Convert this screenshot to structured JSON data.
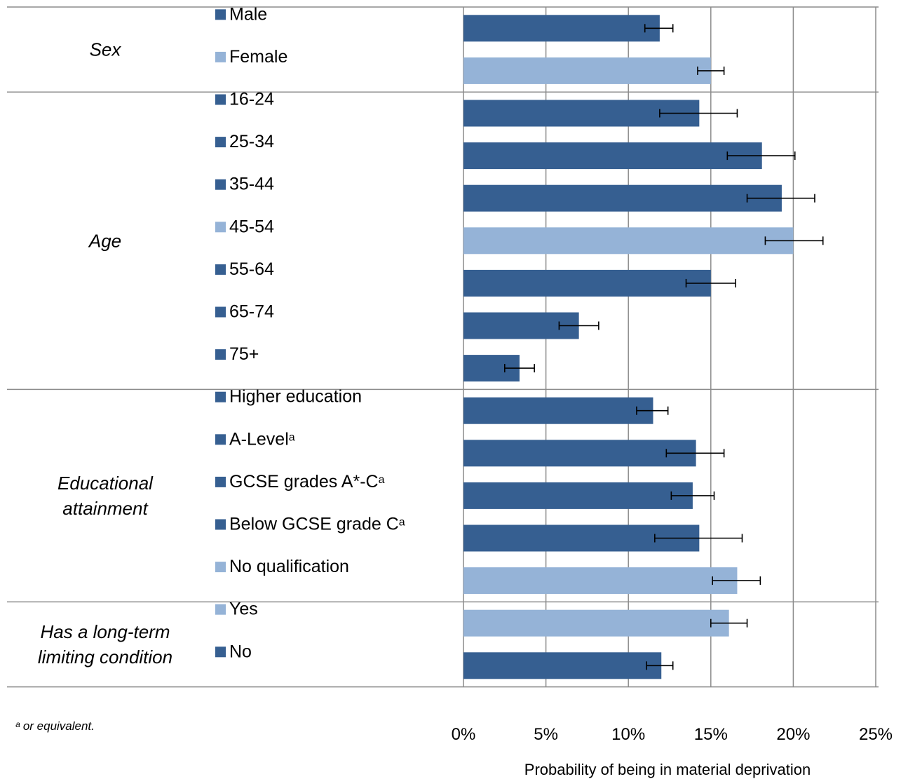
{
  "chart_data": {
    "type": "bar",
    "orientation": "horizontal",
    "xlabel": "Probability of being in material deprivation",
    "xlim": [
      0,
      0.25
    ],
    "x_ticks": [
      {
        "value": 0,
        "label": "0%"
      },
      {
        "value": 0.05,
        "label": "5%"
      },
      {
        "value": 0.1,
        "label": "10%"
      },
      {
        "value": 0.15,
        "label": "15%"
      },
      {
        "value": 0.2,
        "label": "20%"
      },
      {
        "value": 0.25,
        "label": "25%"
      }
    ],
    "grid": true,
    "footnote": "ᵃ or equivalent.",
    "colors": {
      "default": "#365f91",
      "reference": "#95b3d7",
      "error_bar": "#000000",
      "grid": "#8c8c8c"
    },
    "groups": [
      {
        "label": "Sex",
        "categories": [
          {
            "label": "Male",
            "sup": "",
            "value": 0.119,
            "err_low": 0.11,
            "err_high": 0.127,
            "reference": false
          },
          {
            "label": "Female",
            "sup": "",
            "value": 0.15,
            "err_low": 0.142,
            "err_high": 0.158,
            "reference": true
          }
        ]
      },
      {
        "label": "Age",
        "categories": [
          {
            "label": "16-24",
            "sup": "",
            "value": 0.143,
            "err_low": 0.119,
            "err_high": 0.166,
            "reference": false
          },
          {
            "label": "25-34",
            "sup": "",
            "value": 0.181,
            "err_low": 0.16,
            "err_high": 0.201,
            "reference": false
          },
          {
            "label": "35-44",
            "sup": "",
            "value": 0.193,
            "err_low": 0.172,
            "err_high": 0.213,
            "reference": false
          },
          {
            "label": "45-54",
            "sup": "",
            "value": 0.2,
            "err_low": 0.183,
            "err_high": 0.218,
            "reference": true
          },
          {
            "label": "55-64",
            "sup": "",
            "value": 0.15,
            "err_low": 0.135,
            "err_high": 0.165,
            "reference": false
          },
          {
            "label": "65-74",
            "sup": "",
            "value": 0.07,
            "err_low": 0.058,
            "err_high": 0.082,
            "reference": false
          },
          {
            "label": "75+",
            "sup": "",
            "value": 0.034,
            "err_low": 0.025,
            "err_high": 0.043,
            "reference": false
          }
        ]
      },
      {
        "label": "Educational attainment",
        "categories": [
          {
            "label": "Higher education",
            "sup": "",
            "value": 0.115,
            "err_low": 0.105,
            "err_high": 0.124,
            "reference": false
          },
          {
            "label": "A-Level",
            "sup": "a",
            "value": 0.141,
            "err_low": 0.123,
            "err_high": 0.158,
            "reference": false
          },
          {
            "label": "GCSE grades A*-C",
            "sup": "a",
            "value": 0.139,
            "err_low": 0.126,
            "err_high": 0.152,
            "reference": false
          },
          {
            "label": "Below GCSE grade C",
            "sup": "a",
            "value": 0.143,
            "err_low": 0.116,
            "err_high": 0.169,
            "reference": false
          },
          {
            "label": "No qualification",
            "sup": "",
            "value": 0.166,
            "err_low": 0.151,
            "err_high": 0.18,
            "reference": true
          }
        ]
      },
      {
        "label": "Has a long-term limiting condition",
        "categories": [
          {
            "label": "Yes",
            "sup": "",
            "value": 0.161,
            "err_low": 0.15,
            "err_high": 0.172,
            "reference": true
          },
          {
            "label": "No",
            "sup": "",
            "value": 0.12,
            "err_low": 0.111,
            "err_high": 0.127,
            "reference": false
          }
        ]
      }
    ]
  }
}
